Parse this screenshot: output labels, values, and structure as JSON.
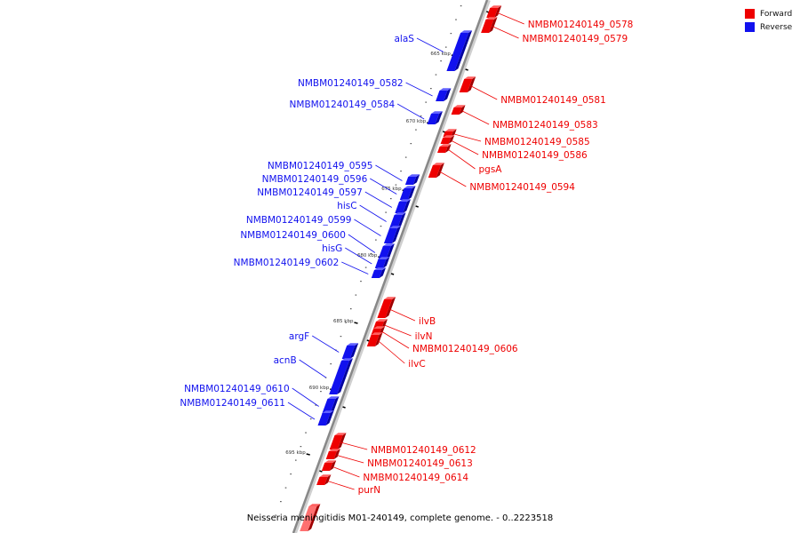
{
  "colors": {
    "forward": "#ee0000",
    "reverse": "#1111ee",
    "backbone": "#888888"
  },
  "legend": [
    {
      "label": "Forward",
      "color": "#ee0000"
    },
    {
      "label": "Reverse",
      "color": "#1111ee"
    }
  ],
  "caption": "Neisseria meningitidis M01-240149, complete genome. - 0..2223518",
  "kbp_ticks": [
    "665 kbp",
    "670 kbp",
    "675 kbp",
    "680 kbp",
    "685 kbp",
    "690 kbp",
    "695 kbp"
  ],
  "forward_genes": [
    "NMBM01240149_0578",
    "NMBM01240149_0579",
    "NMBM01240149_0581",
    "NMBM01240149_0583",
    "NMBM01240149_0585",
    "NMBM01240149_0586",
    "pgsA",
    "NMBM01240149_0594",
    "ilvB",
    "ilvN",
    "NMBM01240149_0606",
    "ilvC",
    "NMBM01240149_0612",
    "NMBM01240149_0613",
    "NMBM01240149_0614",
    "purN"
  ],
  "reverse_genes": [
    "alaS",
    "NMBM01240149_0582",
    "NMBM01240149_0584",
    "NMBM01240149_0595",
    "NMBM01240149_0596",
    "NMBM01240149_0597",
    "hisC",
    "NMBM01240149_0599",
    "NMBM01240149_0600",
    "hisG",
    "NMBM01240149_0602",
    "argF",
    "acnB",
    "NMBM01240149_0610",
    "NMBM01240149_0611"
  ]
}
